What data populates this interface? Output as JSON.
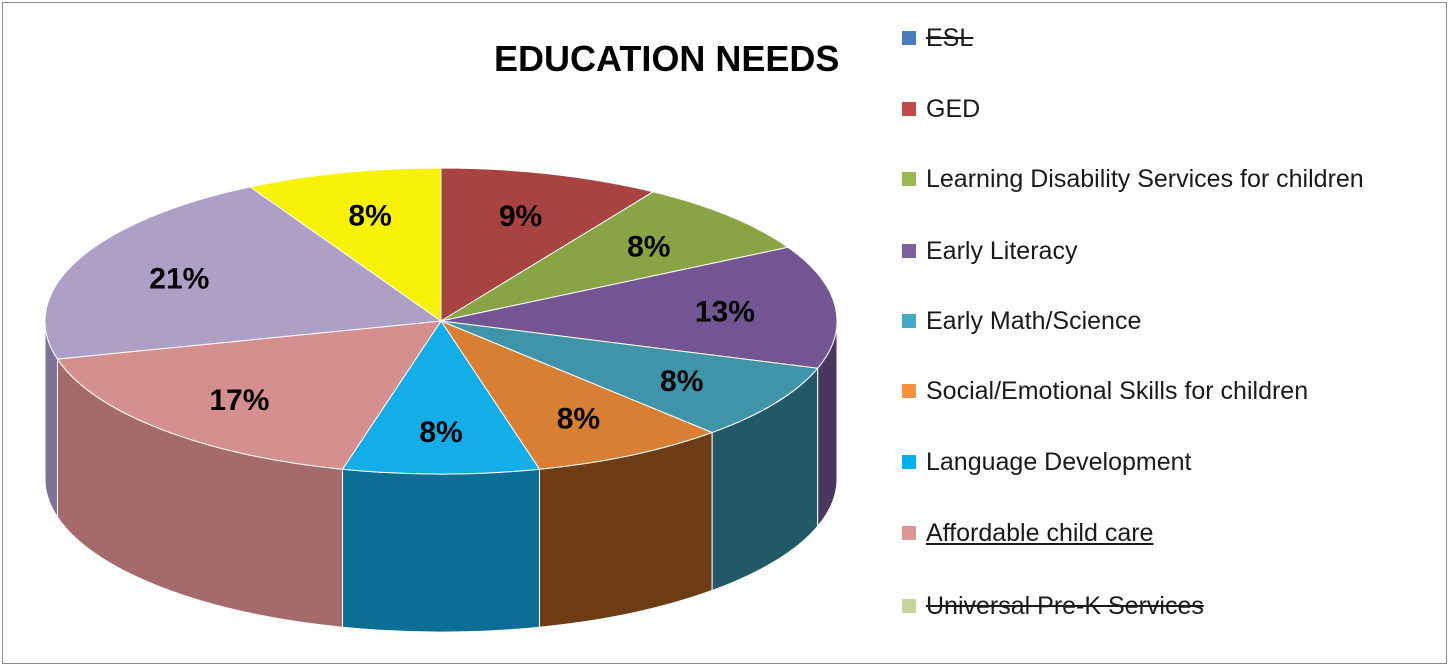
{
  "chart_data": {
    "type": "pie",
    "title": "EDUCATION NEEDS",
    "categories": [
      "GED",
      "Learning Disability Services for children",
      "Early Literacy",
      "Early Math/Science",
      "Social/Emotional Skills for children",
      "Language Development",
      "Affordable child care",
      "Universal Pre-K Services",
      "ESL"
    ],
    "values": [
      9,
      8,
      13,
      8,
      8,
      8,
      17,
      21,
      8
    ],
    "data_labels": [
      "9%",
      "8%",
      "13%",
      "8%",
      "8%",
      "8%",
      "17%",
      "21%",
      "8%"
    ],
    "colors": [
      "#a84342",
      "#88a444",
      "#725592",
      "#3f94aa",
      "#d97f34",
      "#13aee8",
      "#d58f8e",
      "#ae9fc6",
      "#f8f206"
    ],
    "side_colors": [
      "#6e2a29",
      "#566a2a",
      "#4a3760",
      "#225968",
      "#6e3c14",
      "#0c6e95",
      "#a56b6a",
      "#7e729a",
      "#a09c03"
    ],
    "legend_position": "right",
    "legend": [
      {
        "label": "ESL",
        "color": "#4a7ebb",
        "style": "strike"
      },
      {
        "label": "GED",
        "color": "#be4b48",
        "style": "normal"
      },
      {
        "label": "Learning Disability Services for children",
        "color": "#98b954",
        "style": "normal"
      },
      {
        "label": "Early Literacy",
        "color": "#7d60a0",
        "style": "normal"
      },
      {
        "label": "Early Math/Science",
        "color": "#46aac5",
        "style": "normal"
      },
      {
        "label": "Social/Emotional Skills for children",
        "color": "#f69240",
        "style": "normal"
      },
      {
        "label": "Language Development",
        "color": "#00b0f0",
        "style": "normal"
      },
      {
        "label": "Affordable child care",
        "color": "#da9694",
        "style": "underline"
      },
      {
        "label": "Universal Pre-K Services",
        "color": "#c3d69b",
        "style": "strike"
      }
    ]
  }
}
